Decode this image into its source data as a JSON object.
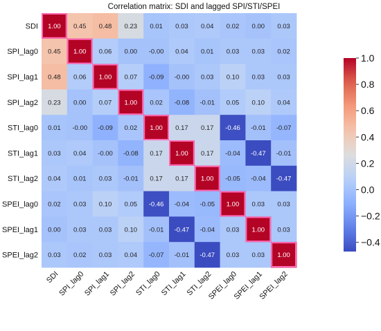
{
  "chart_data": {
    "type": "heatmap",
    "title": "Correlation matrix: SDI and lagged SPI/STI/SPEI",
    "row_labels": [
      "SDI",
      "SPI_lag0",
      "SPI_lag1",
      "SPI_lag2",
      "STI_lag0",
      "STI_lag1",
      "STI_lag2",
      "SPEI_lag0",
      "SPEI_lag1",
      "SPEI_lag2"
    ],
    "col_labels": [
      "SDI",
      "SPI_lag0",
      "SPI_lag1",
      "SPI_lag2",
      "STI_lag0",
      "STI_lag1",
      "STI_lag2",
      "SPEI_lag0",
      "SPEI_lag1",
      "SPEI_lag2"
    ],
    "values": [
      [
        1.0,
        0.45,
        0.48,
        0.23,
        0.01,
        0.03,
        0.04,
        0.02,
        0.0,
        0.03
      ],
      [
        0.45,
        1.0,
        0.06,
        0.0,
        -0.0,
        0.04,
        0.01,
        0.03,
        0.03,
        0.02
      ],
      [
        0.48,
        0.06,
        1.0,
        0.07,
        -0.09,
        -0.0,
        0.03,
        0.1,
        0.03,
        0.03
      ],
      [
        0.23,
        0.0,
        0.07,
        1.0,
        0.02,
        -0.08,
        -0.01,
        0.05,
        0.1,
        0.04
      ],
      [
        0.01,
        -0.0,
        -0.09,
        0.02,
        1.0,
        0.17,
        0.17,
        -0.46,
        -0.01,
        -0.07
      ],
      [
        0.03,
        0.04,
        -0.0,
        -0.08,
        0.17,
        1.0,
        0.17,
        -0.04,
        -0.47,
        -0.01
      ],
      [
        0.04,
        0.01,
        0.03,
        -0.01,
        0.17,
        0.17,
        1.0,
        -0.05,
        -0.04,
        -0.47
      ],
      [
        0.02,
        0.03,
        0.1,
        0.05,
        -0.46,
        -0.04,
        -0.05,
        1.0,
        0.03,
        0.03
      ],
      [
        0.0,
        0.03,
        0.03,
        0.1,
        -0.01,
        -0.47,
        -0.04,
        0.03,
        1.0,
        0.03
      ],
      [
        0.03,
        0.02,
        0.03,
        0.04,
        -0.07,
        -0.01,
        -0.47,
        0.03,
        0.03,
        1.0
      ]
    ],
    "value_labels": [
      [
        "1.00",
        "0.45",
        "0.48",
        "0.23",
        "0.01",
        "0.03",
        "0.04",
        "0.02",
        "0.00",
        "0.03"
      ],
      [
        "0.45",
        "1.00",
        "0.06",
        "0.00",
        "-0.00",
        "0.04",
        "0.01",
        "0.03",
        "0.03",
        "0.02"
      ],
      [
        "0.48",
        "0.06",
        "1.00",
        "0.07",
        "-0.09",
        "-0.00",
        "0.03",
        "0.10",
        "0.03",
        "0.03"
      ],
      [
        "0.23",
        "0.00",
        "0.07",
        "1.00",
        "0.02",
        "-0.08",
        "-0.01",
        "0.05",
        "0.10",
        "0.04"
      ],
      [
        "0.01",
        "-0.00",
        "-0.09",
        "0.02",
        "1.00",
        "0.17",
        "0.17",
        "-0.46",
        "-0.01",
        "-0.07"
      ],
      [
        "0.03",
        "0.04",
        "-0.00",
        "-0.08",
        "0.17",
        "1.00",
        "0.17",
        "-0.04",
        "-0.47",
        "-0.01"
      ],
      [
        "0.04",
        "0.01",
        "0.03",
        "-0.01",
        "0.17",
        "0.17",
        "1.00",
        "-0.05",
        "-0.04",
        "-0.47"
      ],
      [
        "0.02",
        "0.03",
        "0.10",
        "0.05",
        "-0.46",
        "-0.04",
        "-0.05",
        "1.00",
        "0.03",
        "0.03"
      ],
      [
        "0.00",
        "0.03",
        "0.03",
        "0.10",
        "-0.01",
        "-0.47",
        "-0.04",
        "0.03",
        "1.00",
        "0.03"
      ],
      [
        "0.03",
        "0.02",
        "0.03",
        "0.04",
        "-0.07",
        "-0.01",
        "-0.47",
        "0.03",
        "0.03",
        "1.00"
      ]
    ],
    "colormap": "coolwarm",
    "vmin": -0.47,
    "vmax": 1.0,
    "colorbar_ticks": [
      1.0,
      0.8,
      0.6,
      0.4,
      0.2,
      0.0,
      -0.2,
      -0.4
    ],
    "colorbar_tick_labels": [
      "1.0",
      "0.8",
      "0.6",
      "0.4",
      "0.2",
      "0.0",
      "−0.2",
      "−0.4"
    ],
    "diagonal_outline_color": "#ff69b4"
  }
}
